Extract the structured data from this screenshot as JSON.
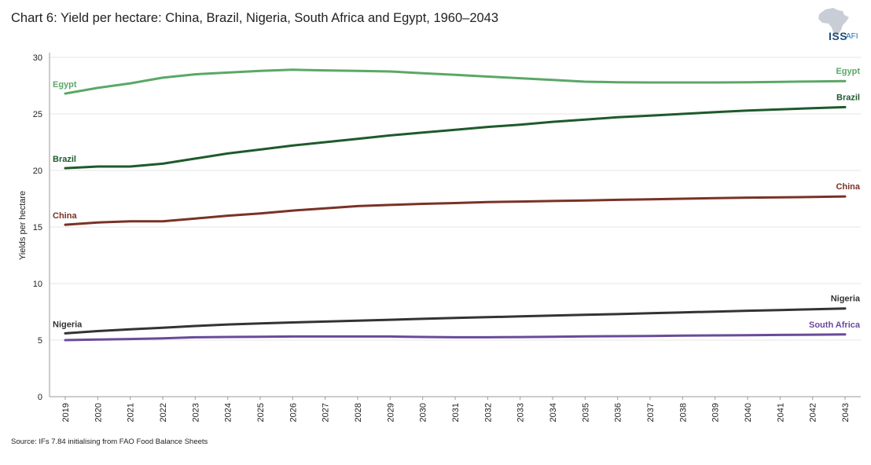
{
  "title": "Chart 6: Yield per hectare: China, Brazil, Nigeria, South Africa and Egypt, 1960–2043",
  "logo": {
    "iss": "ISS",
    "afi": "AFI"
  },
  "source": "Source: IFs 7.84 initialising from FAO Food Balance Sheets",
  "colors": {
    "Egypt": "#5aa867",
    "Brazil": "#1e5a2c",
    "China": "#7a3226",
    "Nigeria": "#333333",
    "South Africa": "#6a4a9a",
    "axis": "#999999",
    "grid": "#e6e6e6",
    "logo_africa": "#c9ced6"
  },
  "chart_data": {
    "type": "line",
    "title": "Chart 6: Yield per hectare: China, Brazil, Nigeria, South Africa and Egypt, 1960–2043",
    "xlabel": "",
    "ylabel": "Yields per hectare",
    "ylim": [
      0,
      30
    ],
    "yticks": [
      0,
      5,
      10,
      15,
      20,
      25,
      30
    ],
    "grid": true,
    "legend": "inline labels at series start and end",
    "x": [
      "2019",
      "2020",
      "2021",
      "2022",
      "2023",
      "2024",
      "2025",
      "2026",
      "2027",
      "2028",
      "2029",
      "2030",
      "2031",
      "2032",
      "2033",
      "2034",
      "2035",
      "2036",
      "2037",
      "2038",
      "2039",
      "2040",
      "2041",
      "2042",
      "2043"
    ],
    "series": [
      {
        "name": "Egypt",
        "start_label": "Egypt",
        "end_label": "Egypt",
        "values": [
          26.8,
          27.3,
          27.7,
          28.2,
          28.5,
          28.65,
          28.8,
          28.9,
          28.85,
          28.8,
          28.75,
          28.6,
          28.45,
          28.3,
          28.15,
          28.0,
          27.85,
          27.8,
          27.78,
          27.78,
          27.78,
          27.8,
          27.83,
          27.87,
          27.9
        ]
      },
      {
        "name": "Brazil",
        "start_label": "Brazil",
        "end_label": "Brazil",
        "values": [
          20.2,
          20.35,
          20.35,
          20.6,
          21.05,
          21.5,
          21.85,
          22.2,
          22.5,
          22.8,
          23.1,
          23.35,
          23.6,
          23.85,
          24.05,
          24.3,
          24.5,
          24.7,
          24.85,
          25.0,
          25.15,
          25.3,
          25.4,
          25.5,
          25.6
        ]
      },
      {
        "name": "China",
        "start_label": "China",
        "end_label": "China",
        "values": [
          15.2,
          15.4,
          15.5,
          15.5,
          15.75,
          16.0,
          16.2,
          16.45,
          16.65,
          16.85,
          16.95,
          17.05,
          17.12,
          17.2,
          17.25,
          17.3,
          17.35,
          17.4,
          17.45,
          17.5,
          17.55,
          17.6,
          17.62,
          17.65,
          17.7
        ]
      },
      {
        "name": "Nigeria",
        "start_label": "Nigeria",
        "end_label": "Nigeria",
        "values": [
          5.6,
          5.8,
          5.95,
          6.1,
          6.25,
          6.38,
          6.48,
          6.56,
          6.64,
          6.72,
          6.8,
          6.88,
          6.96,
          7.03,
          7.1,
          7.17,
          7.24,
          7.3,
          7.38,
          7.45,
          7.52,
          7.6,
          7.66,
          7.73,
          7.8
        ]
      },
      {
        "name": "South Africa",
        "start_label": "",
        "end_label": "South Africa",
        "values": [
          5.0,
          5.05,
          5.1,
          5.15,
          5.25,
          5.28,
          5.3,
          5.32,
          5.32,
          5.32,
          5.32,
          5.28,
          5.25,
          5.25,
          5.27,
          5.3,
          5.33,
          5.35,
          5.37,
          5.4,
          5.42,
          5.44,
          5.46,
          5.48,
          5.5
        ]
      }
    ]
  }
}
